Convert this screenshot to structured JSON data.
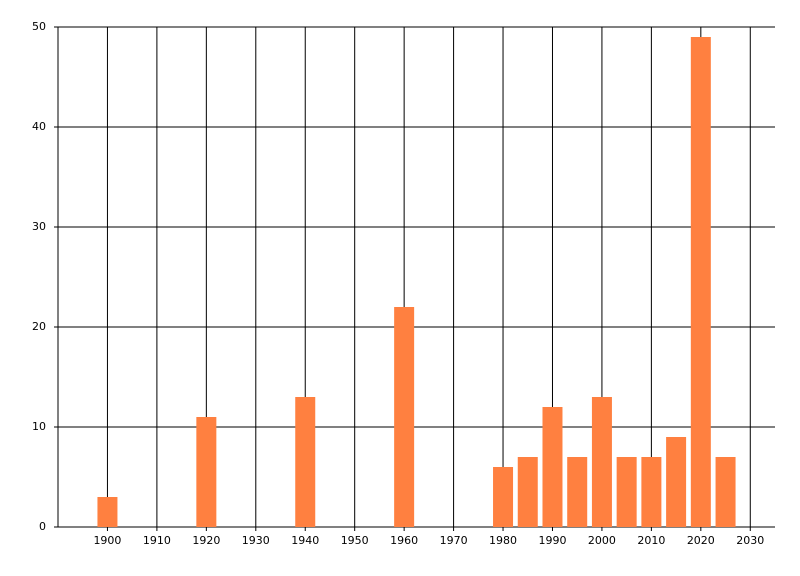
{
  "chart_data": {
    "type": "bar",
    "x": [
      1900,
      1920,
      1940,
      1960,
      1980,
      1985,
      1990,
      1995,
      2000,
      2005,
      2010,
      2015,
      2020,
      2025
    ],
    "values": [
      3,
      11,
      13,
      22,
      6,
      7,
      12,
      7,
      13,
      7,
      7,
      9,
      49,
      7
    ],
    "color": "#ff8040",
    "xlim": [
      1890,
      2035
    ],
    "xticks": [
      1900,
      1910,
      1920,
      1930,
      1940,
      1950,
      1960,
      1970,
      1980,
      1990,
      2000,
      2010,
      2020,
      2030
    ],
    "ylim": [
      0,
      50
    ],
    "yticks": [
      0,
      10,
      20,
      30,
      40,
      50
    ],
    "grid": true
  }
}
